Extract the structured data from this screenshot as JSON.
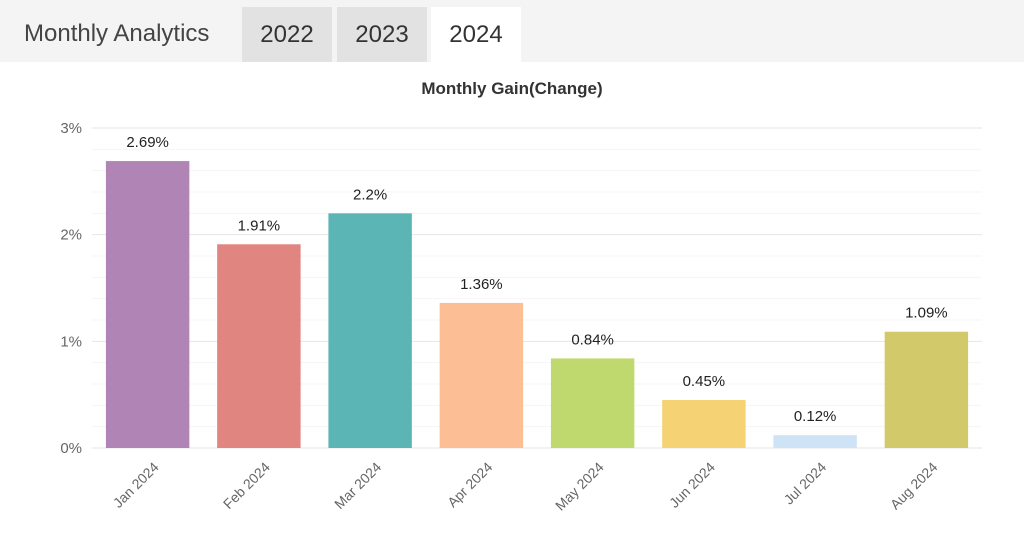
{
  "header": {
    "title": "Monthly Analytics",
    "tabs": [
      {
        "label": "2022",
        "active": false
      },
      {
        "label": "2023",
        "active": false
      },
      {
        "label": "2024",
        "active": true
      }
    ]
  },
  "chart_data": {
    "type": "bar",
    "title": "Monthly Gain(Change)",
    "xlabel": "",
    "ylabel": "",
    "categories": [
      "Jan 2024",
      "Feb 2024",
      "Mar 2024",
      "Apr 2024",
      "May 2024",
      "Jun 2024",
      "Jul 2024",
      "Aug 2024"
    ],
    "values": [
      2.69,
      1.91,
      2.2,
      1.36,
      0.84,
      0.45,
      0.12,
      1.09
    ],
    "data_labels": [
      "2.69%",
      "1.91%",
      "2.2%",
      "1.36%",
      "0.84%",
      "0.45%",
      "0.12%",
      "1.09%"
    ],
    "ylim": [
      0,
      3
    ],
    "yticks": [
      0,
      1,
      2,
      3
    ],
    "ytick_labels": [
      "0%",
      "1%",
      "2%",
      "3%"
    ],
    "grid": true,
    "legend": "none",
    "colors": [
      "#b085b5",
      "#e08580",
      "#5bb5b5",
      "#fbbe95",
      "#bfd96f",
      "#f5d274",
      "#cfe3f7",
      "#d2c96a"
    ]
  }
}
